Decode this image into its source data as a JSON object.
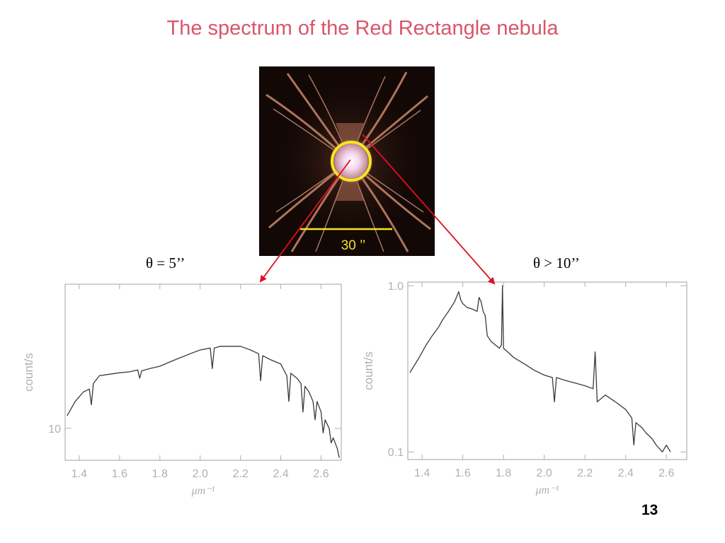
{
  "slide": {
    "title": "The spectrum of the Red Rectangle nebula",
    "page_number": "13",
    "scale_bar_label": "30 ’’",
    "label_left": "θ = 5’’",
    "label_right": "θ > 10’’"
  },
  "colors": {
    "title": "#d8566a",
    "arrow": "#e01020",
    "circle": "#f5e61e",
    "scale_bar": "#f5e61e",
    "axis": "#b0b0b0",
    "trace": "#3a3a3a"
  },
  "chart_data": [
    {
      "type": "line",
      "name": "left-spectrum",
      "xlabel": "μm⁻¹",
      "ylabel": "count/s",
      "log_y": true,
      "xlim": [
        1.33,
        2.7
      ],
      "ylim": [
        7.0,
        50.0
      ],
      "xticks": [
        1.4,
        1.6,
        1.8,
        2.0,
        2.2,
        2.4,
        2.6
      ],
      "xtick_labels": [
        "1.4",
        "1.6",
        "1.8",
        "2.0",
        "2.2",
        "2.4",
        "2.6"
      ],
      "yticks": [
        10
      ],
      "ytick_labels": [
        "10"
      ],
      "series": [
        {
          "x": [
            1.34,
            1.38,
            1.42,
            1.45,
            1.46,
            1.47,
            1.5,
            1.55,
            1.6,
            1.65,
            1.69,
            1.7,
            1.71,
            1.75,
            1.8,
            1.85,
            1.9,
            1.95,
            2.0,
            2.05,
            2.06,
            2.07,
            2.1,
            2.15,
            2.2,
            2.25,
            2.29,
            2.3,
            2.31,
            2.35,
            2.4,
            2.43,
            2.44,
            2.45,
            2.48,
            2.5,
            2.51,
            2.52,
            2.54,
            2.56,
            2.57,
            2.58,
            2.6,
            2.61,
            2.62,
            2.64,
            2.65,
            2.66,
            2.68,
            2.69
          ],
          "y": [
            11.5,
            13.5,
            15.0,
            15.5,
            13.0,
            16.5,
            18.0,
            18.3,
            18.6,
            18.8,
            19.2,
            17.5,
            19.0,
            19.5,
            20.0,
            21.0,
            22.0,
            23.0,
            24.0,
            24.5,
            19.5,
            24.5,
            25.0,
            25.0,
            25.0,
            24.0,
            23.0,
            17.0,
            22.5,
            21.5,
            20.5,
            18.0,
            13.5,
            18.5,
            17.5,
            16.5,
            12.0,
            16.0,
            15.0,
            13.5,
            11.0,
            13.5,
            12.0,
            9.5,
            11.0,
            10.0,
            8.5,
            9.0,
            8.0,
            7.2
          ]
        }
      ]
    },
    {
      "type": "line",
      "name": "right-spectrum",
      "xlabel": "μm⁻¹",
      "ylabel": "count/s",
      "log_y": true,
      "xlim": [
        1.33,
        2.7
      ],
      "ylim": [
        0.09,
        1.05
      ],
      "xticks": [
        1.4,
        1.6,
        1.8,
        2.0,
        2.2,
        2.4,
        2.6
      ],
      "xtick_labels": [
        "1.4",
        "1.6",
        "1.8",
        "2.0",
        "2.2",
        "2.4",
        "2.6"
      ],
      "yticks": [
        0.1,
        1.0
      ],
      "ytick_labels": [
        "0.1",
        "1.0"
      ],
      "series": [
        {
          "x": [
            1.34,
            1.38,
            1.42,
            1.45,
            1.48,
            1.5,
            1.53,
            1.56,
            1.58,
            1.59,
            1.6,
            1.62,
            1.65,
            1.67,
            1.68,
            1.69,
            1.7,
            1.71,
            1.72,
            1.74,
            1.76,
            1.78,
            1.79,
            1.795,
            1.8,
            1.82,
            1.85,
            1.9,
            1.95,
            2.0,
            2.04,
            2.05,
            2.06,
            2.1,
            2.15,
            2.2,
            2.24,
            2.25,
            2.26,
            2.3,
            2.35,
            2.4,
            2.43,
            2.44,
            2.45,
            2.48,
            2.5,
            2.53,
            2.55,
            2.58,
            2.6,
            2.62
          ],
          "y": [
            0.3,
            0.36,
            0.44,
            0.5,
            0.56,
            0.62,
            0.7,
            0.8,
            0.92,
            0.82,
            0.78,
            0.74,
            0.72,
            0.7,
            0.85,
            0.8,
            0.7,
            0.66,
            0.5,
            0.46,
            0.44,
            0.42,
            0.44,
            1.0,
            0.42,
            0.4,
            0.37,
            0.34,
            0.31,
            0.29,
            0.28,
            0.2,
            0.28,
            0.27,
            0.26,
            0.25,
            0.24,
            0.4,
            0.2,
            0.22,
            0.2,
            0.18,
            0.16,
            0.11,
            0.15,
            0.14,
            0.13,
            0.12,
            0.11,
            0.1,
            0.11,
            0.1
          ]
        }
      ]
    }
  ]
}
